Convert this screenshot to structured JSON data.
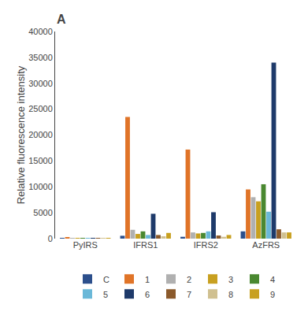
{
  "chart_data": {
    "type": "bar",
    "categories": [
      "PyIRS",
      "IFRS1",
      "IFRS2",
      "AzFRS"
    ],
    "series": [
      {
        "name": "C",
        "color": "#2C4F8C",
        "values": [
          150,
          550,
          350,
          1400
        ]
      },
      {
        "name": "1",
        "color": "#E07428",
        "values": [
          250,
          23500,
          17200,
          9500
        ]
      },
      {
        "name": "2",
        "color": "#B0B0B0",
        "values": [
          150,
          1700,
          1200,
          8000
        ]
      },
      {
        "name": "3",
        "color": "#C8A020",
        "values": [
          120,
          900,
          1000,
          7200
        ]
      },
      {
        "name": "4",
        "color": "#4A8830",
        "values": [
          120,
          1400,
          1100,
          10500
        ]
      },
      {
        "name": "5",
        "color": "#6AB8D8",
        "values": [
          130,
          700,
          1400,
          5200
        ]
      },
      {
        "name": "6",
        "color": "#1E3A6A",
        "values": [
          120,
          4800,
          5100,
          34000
        ]
      },
      {
        "name": "7",
        "color": "#8B5A2B",
        "values": [
          100,
          700,
          600,
          1800
        ]
      },
      {
        "name": "8",
        "color": "#D0C090",
        "values": [
          100,
          450,
          350,
          1200
        ]
      },
      {
        "name": "9",
        "color": "#C8A020",
        "values": [
          120,
          1100,
          700,
          1200
        ]
      }
    ],
    "ylabel": "Relative fluorescence intensity",
    "ylim": [
      0,
      40000
    ],
    "yticks": [
      0,
      5000,
      10000,
      15000,
      20000,
      25000,
      30000,
      35000,
      40000
    ],
    "grid": false,
    "legend": "bottom",
    "annotations": [
      {
        "text": "A"
      }
    ]
  }
}
